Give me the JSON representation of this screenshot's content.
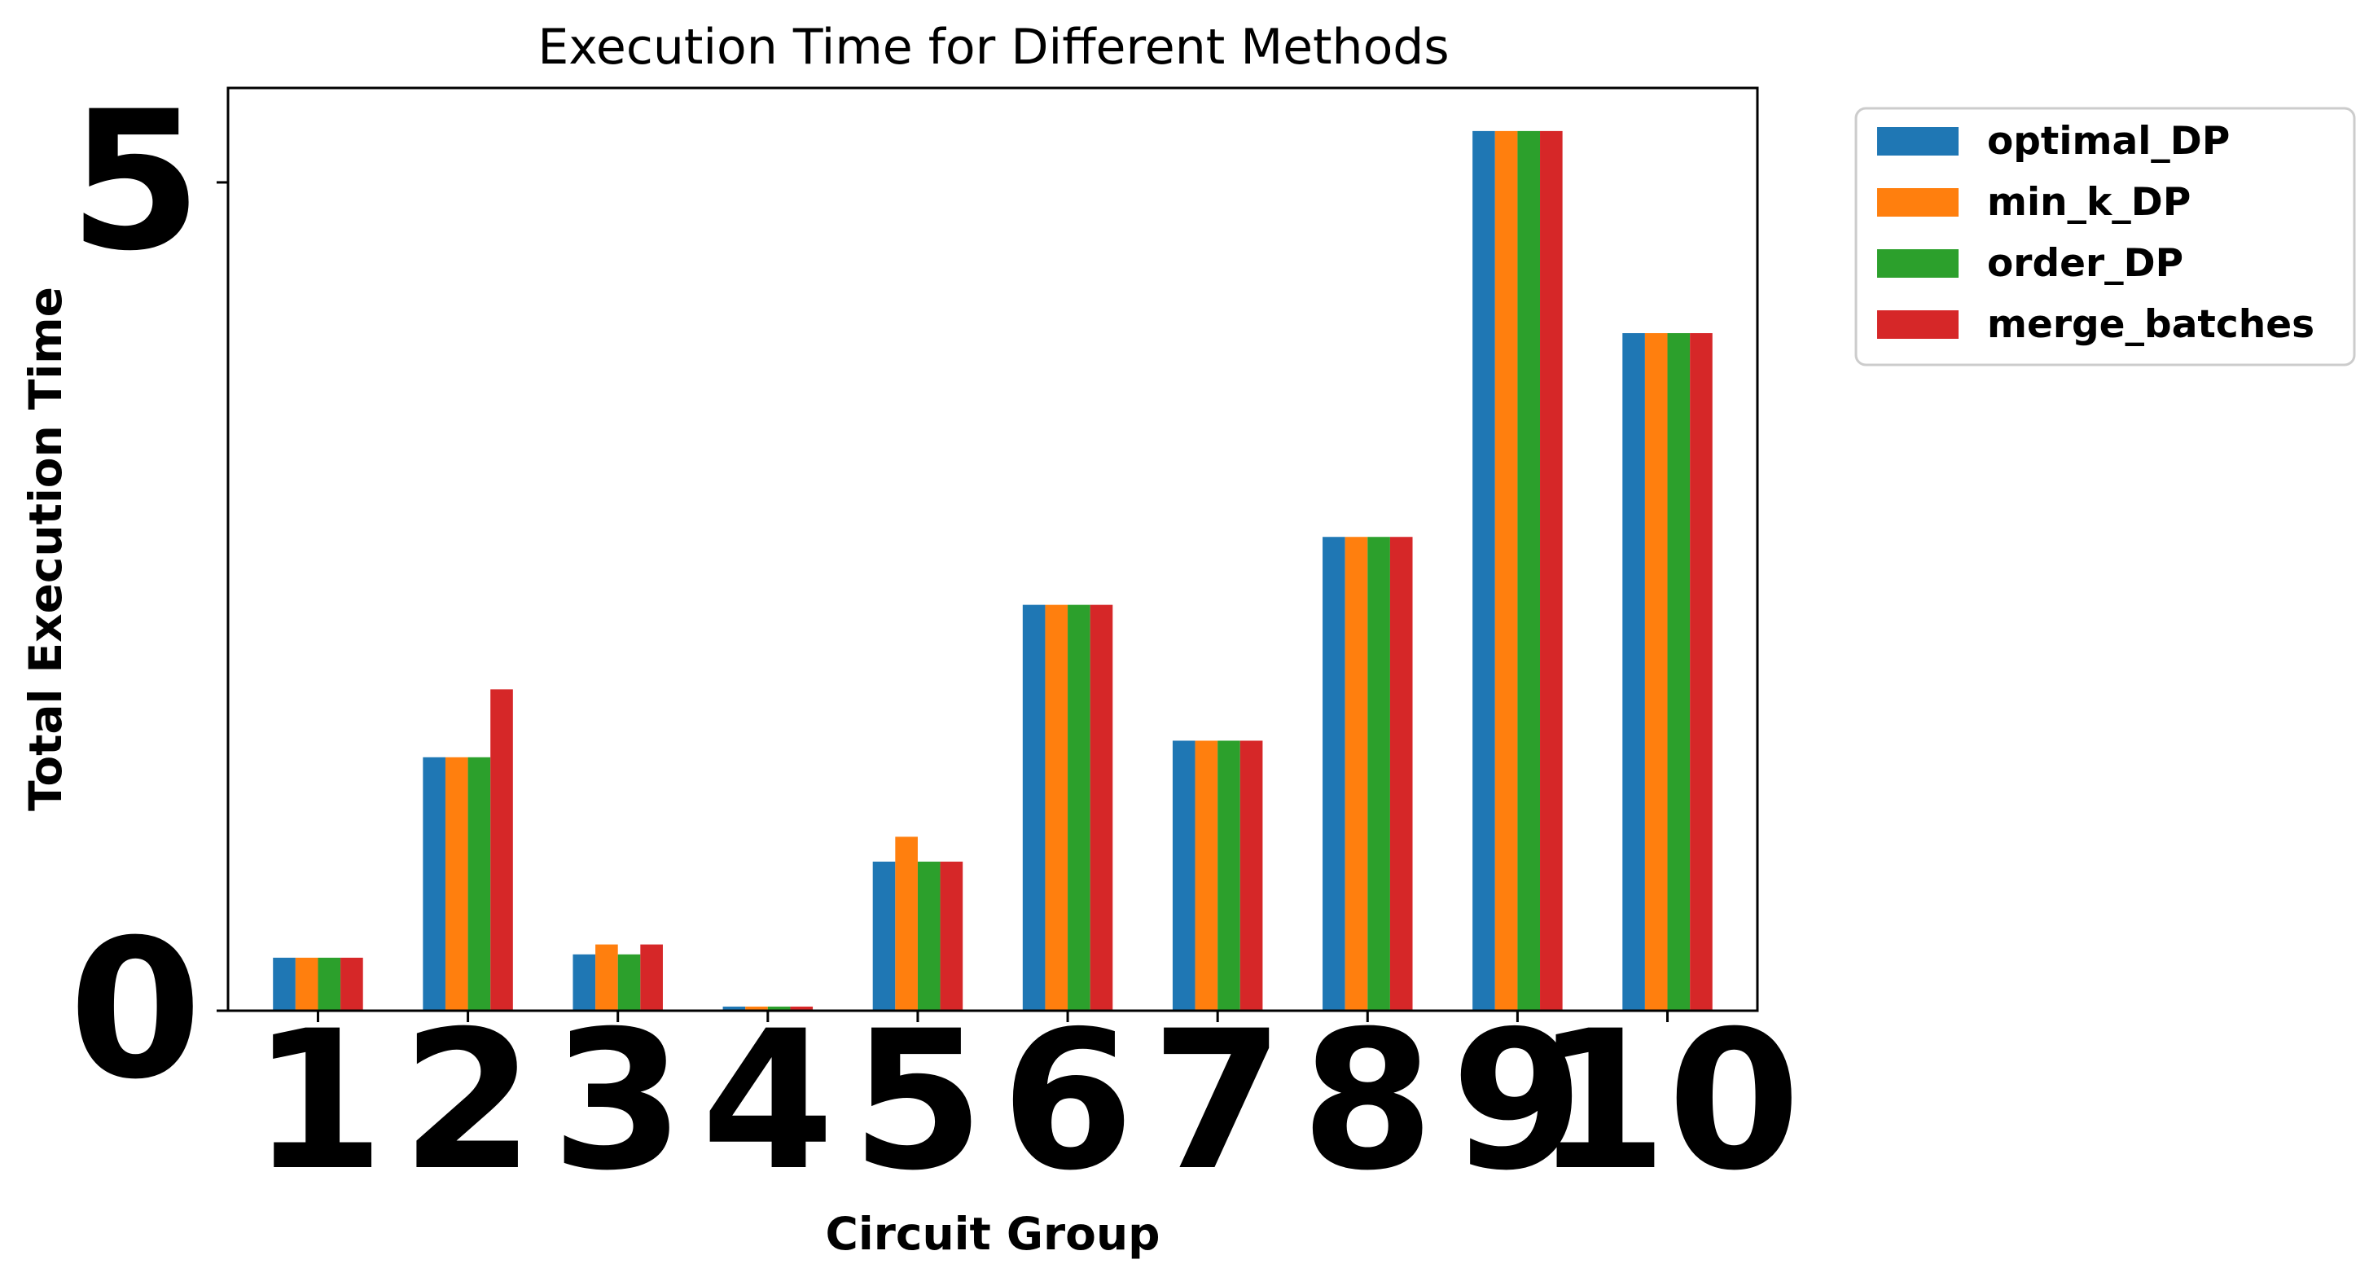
{
  "chart_data": {
    "type": "bar",
    "title": "Execution Time for Different Methods",
    "xlabel": "Circuit Group",
    "ylabel": "Total Execution Time",
    "categories": [
      "1",
      "2",
      "3",
      "4",
      "5",
      "6",
      "7",
      "8",
      "9",
      "10"
    ],
    "y_ticks": [
      {
        "value": 0,
        "label": "0"
      },
      {
        "value": 5,
        "label": "5"
      }
    ],
    "ylim": [
      0,
      5.57
    ],
    "xlim": [
      0.4,
      10.6
    ],
    "legend_position": "outside-upper-right",
    "grid": false,
    "series": [
      {
        "name": "optimal_DP",
        "color": "#1f77b4",
        "values": [
          0.32,
          1.53,
          0.34,
          0.025,
          0.9,
          2.45,
          1.63,
          2.86,
          5.31,
          4.09
        ]
      },
      {
        "name": "min_k_DP",
        "color": "#ff7f0e",
        "values": [
          0.32,
          1.53,
          0.4,
          0.025,
          1.05,
          2.45,
          1.63,
          2.86,
          5.31,
          4.09
        ]
      },
      {
        "name": "order_DP",
        "color": "#2ca02c",
        "values": [
          0.32,
          1.53,
          0.34,
          0.025,
          0.9,
          2.45,
          1.63,
          2.86,
          5.31,
          4.09
        ]
      },
      {
        "name": "merge_batches",
        "color": "#d62728",
        "values": [
          0.32,
          1.94,
          0.4,
          0.025,
          0.9,
          2.45,
          1.63,
          2.86,
          5.31,
          4.09
        ]
      }
    ]
  }
}
